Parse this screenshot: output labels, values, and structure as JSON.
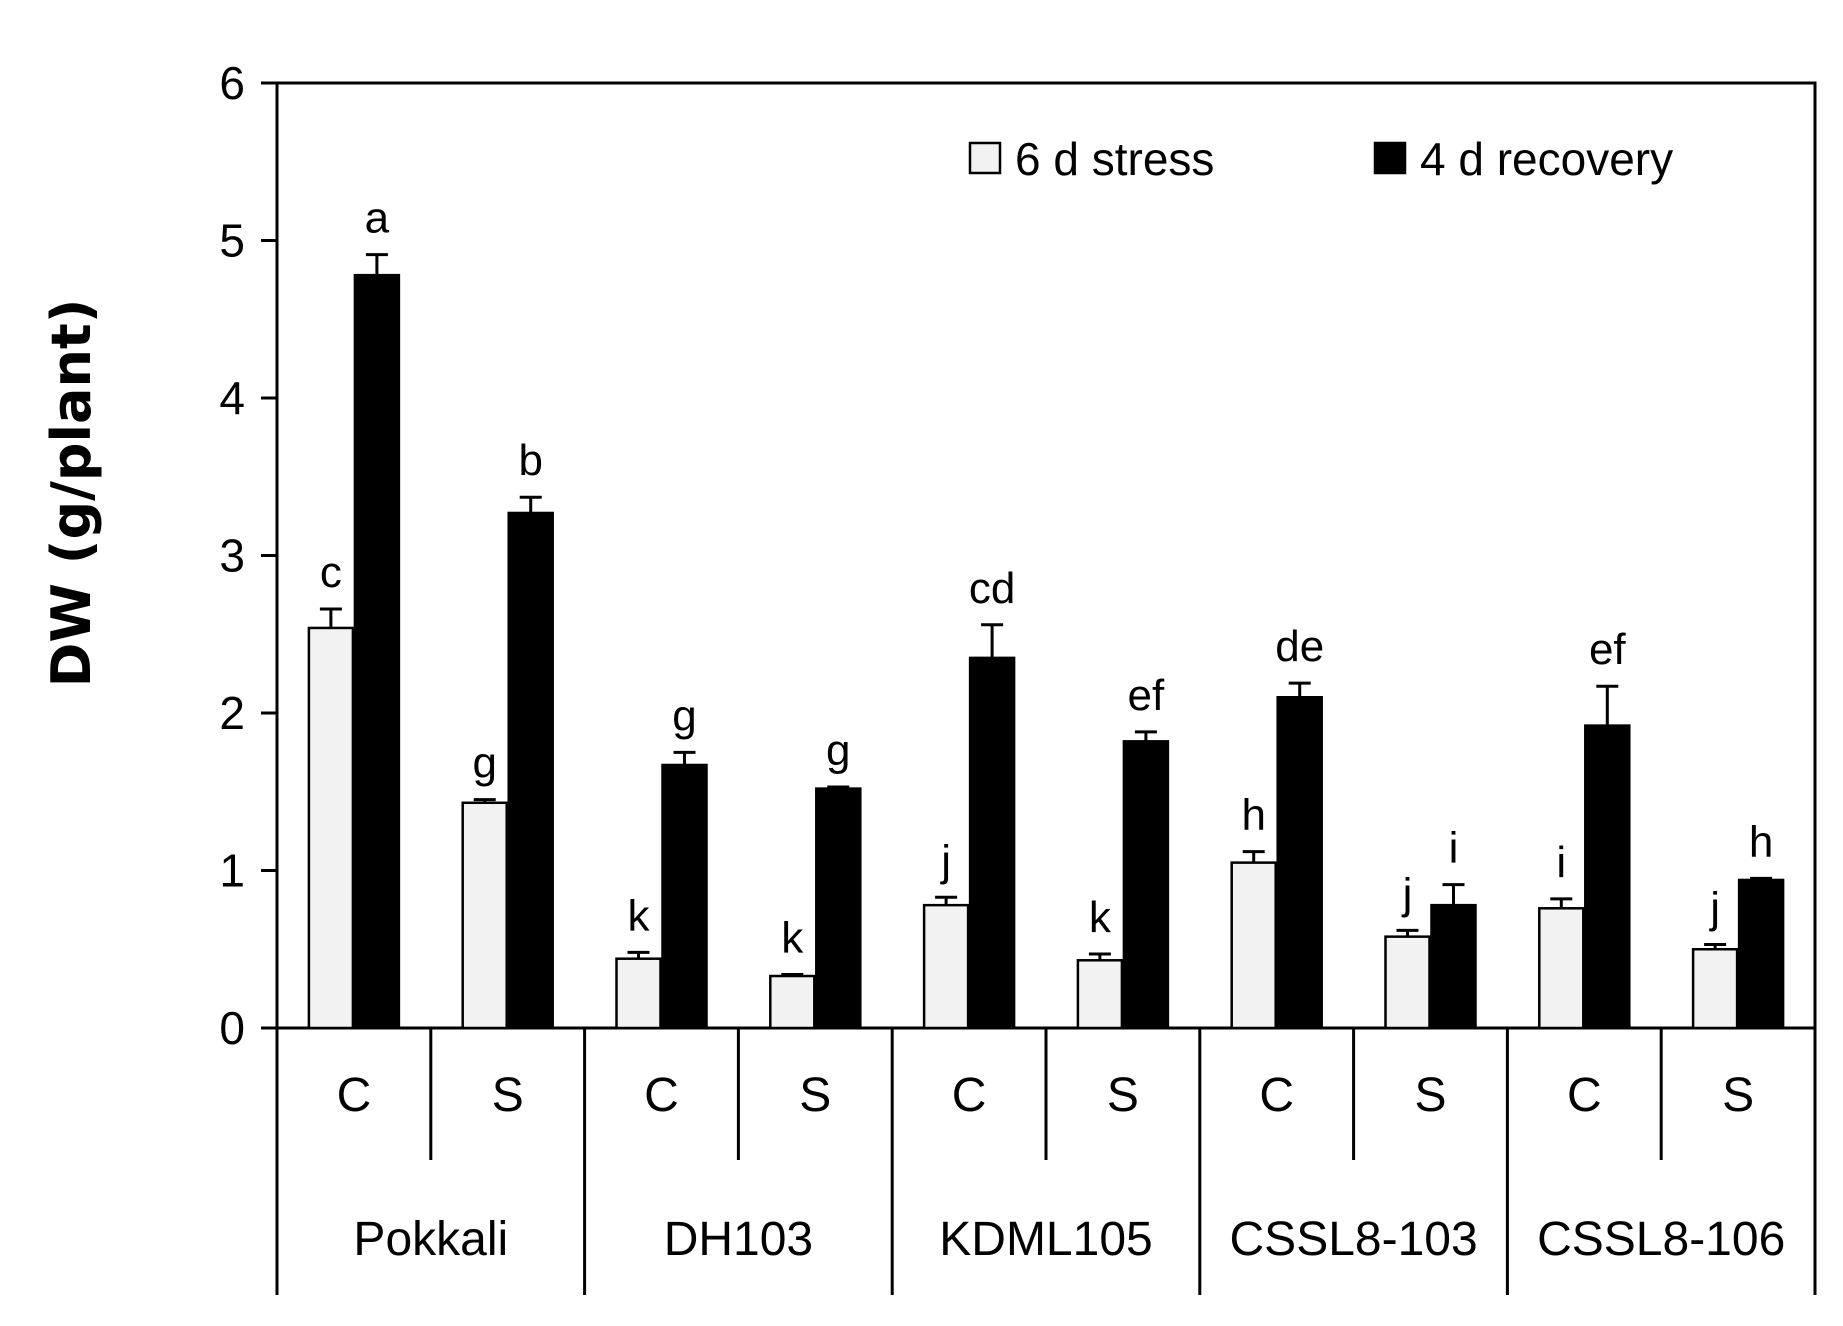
{
  "chart_data": {
    "type": "bar",
    "ylabel": "DW (g/plant)",
    "ylim": [
      0,
      6
    ],
    "yticks": [
      "0",
      "1",
      "2",
      "3",
      "4",
      "5",
      "6"
    ],
    "legend_position": "top-right",
    "groups": [
      "Pokkali",
      "DH103",
      "KDML105",
      "CSSL8-103",
      "CSSL8-106"
    ],
    "categories": [
      "C",
      "S",
      "C",
      "S",
      "C",
      "S",
      "C",
      "S",
      "C",
      "S"
    ],
    "series": [
      {
        "name": "6 d stress",
        "color": "#f2f2f2",
        "values": [
          2.54,
          1.43,
          0.44,
          0.33,
          0.78,
          0.43,
          1.05,
          0.58,
          0.76,
          0.5
        ],
        "errors": [
          0.12,
          0.02,
          0.04,
          0.01,
          0.05,
          0.04,
          0.07,
          0.04,
          0.06,
          0.03
        ],
        "letters": [
          "c",
          "g",
          "k",
          "k",
          "j",
          "k",
          "h",
          "j",
          "i",
          "j"
        ]
      },
      {
        "name": "4 d recovery",
        "color": "#000000",
        "values": [
          4.78,
          3.27,
          1.67,
          1.52,
          2.35,
          1.82,
          2.1,
          0.78,
          1.92,
          0.94
        ],
        "errors": [
          0.13,
          0.1,
          0.08,
          0.01,
          0.21,
          0.06,
          0.09,
          0.13,
          0.25,
          0.01
        ],
        "letters": [
          "a",
          "b",
          "g",
          "g",
          "cd",
          "ef",
          "de",
          "i",
          "ef",
          "h"
        ]
      }
    ]
  }
}
